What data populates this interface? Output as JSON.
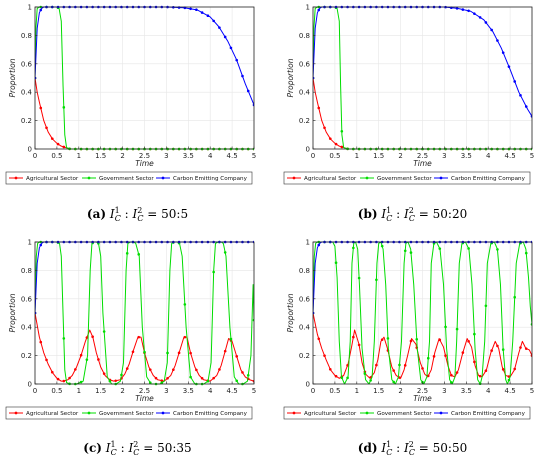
{
  "chart_data": [
    {
      "type": "line",
      "panel_letter": "(a)",
      "caption_ratio": "50:5",
      "xlabel": "Time",
      "ylabel": "Proportion",
      "xlim": [
        0,
        5
      ],
      "ylim": [
        0,
        1
      ],
      "xticks": [
        "0",
        "0.5",
        "1",
        "1.5",
        "2",
        "2.5",
        "3",
        "3.5",
        "4",
        "4.5",
        "5"
      ],
      "yticks": [
        "0",
        "0.2",
        "0.4",
        "0.6",
        "0.8",
        "1"
      ],
      "grid": true,
      "legend_position": "bottom",
      "series": [
        {
          "name": "Agricultural Sector",
          "color": "#ff0000",
          "x": [
            0,
            0.05,
            0.1,
            0.2,
            0.3,
            0.4,
            0.5,
            0.6,
            0.7,
            0.8,
            1.0,
            1.5,
            5
          ],
          "y": [
            0.5,
            0.4,
            0.33,
            0.2,
            0.12,
            0.07,
            0.04,
            0.02,
            0.01,
            0.0,
            0.0,
            0.0,
            0.0
          ]
        },
        {
          "name": "Government Sector",
          "color": "#00dd00",
          "x": [
            0,
            0.02,
            0.05,
            0.1,
            0.2,
            0.5,
            0.55,
            0.6,
            0.64,
            0.68,
            0.72,
            0.8,
            1.0,
            5
          ],
          "y": [
            0.5,
            0.85,
            0.99,
            1.0,
            1.0,
            1.0,
            0.99,
            0.9,
            0.45,
            0.1,
            0.01,
            0.0,
            0.0,
            0.0
          ]
        },
        {
          "name": "Carbon Emitting Company",
          "color": "#0000ff",
          "x": [
            0,
            0.05,
            0.1,
            0.15,
            0.2,
            0.3,
            0.5,
            1,
            2,
            3,
            3.4,
            3.7,
            4.0,
            4.2,
            4.4,
            4.6,
            4.8,
            5.0
          ],
          "y": [
            0.5,
            0.85,
            0.96,
            0.99,
            1.0,
            1.0,
            1.0,
            1.0,
            1.0,
            1.0,
            0.995,
            0.98,
            0.93,
            0.86,
            0.76,
            0.63,
            0.46,
            0.31
          ]
        }
      ]
    },
    {
      "type": "line",
      "panel_letter": "(b)",
      "caption_ratio": "50:20",
      "xlabel": "Time",
      "ylabel": "Proportion",
      "xlim": [
        0,
        5
      ],
      "ylim": [
        0,
        1
      ],
      "xticks": [
        "0",
        "0.5",
        "1",
        "1.5",
        "2",
        "2.5",
        "3",
        "3.5",
        "4",
        "4.5",
        "5"
      ],
      "yticks": [
        "0",
        "0.2",
        "0.4",
        "0.6",
        "0.8",
        "1"
      ],
      "grid": true,
      "legend_position": "bottom",
      "series": [
        {
          "name": "Agricultural Sector",
          "color": "#ff0000",
          "x": [
            0,
            0.05,
            0.1,
            0.2,
            0.3,
            0.4,
            0.5,
            0.6,
            0.7,
            0.8,
            1.0,
            5
          ],
          "y": [
            0.5,
            0.4,
            0.33,
            0.2,
            0.12,
            0.07,
            0.04,
            0.02,
            0.01,
            0.0,
            0.0,
            0.0
          ]
        },
        {
          "name": "Government Sector",
          "color": "#00dd00",
          "x": [
            0,
            0.02,
            0.05,
            0.1,
            0.2,
            0.5,
            0.55,
            0.6,
            0.63,
            0.66,
            0.7,
            0.8,
            1.0,
            5
          ],
          "y": [
            0.5,
            0.85,
            0.99,
            1.0,
            1.0,
            1.0,
            0.99,
            0.9,
            0.45,
            0.1,
            0.01,
            0.0,
            0.0,
            0.0
          ]
        },
        {
          "name": "Carbon Emitting Company",
          "color": "#0000ff",
          "x": [
            0,
            0.05,
            0.1,
            0.15,
            0.2,
            0.3,
            0.5,
            1,
            2,
            3,
            3.3,
            3.6,
            3.9,
            4.1,
            4.3,
            4.5,
            4.7,
            4.9,
            5.0
          ],
          "y": [
            0.5,
            0.85,
            0.96,
            0.99,
            1.0,
            1.0,
            1.0,
            1.0,
            1.0,
            1.0,
            0.99,
            0.97,
            0.91,
            0.83,
            0.71,
            0.56,
            0.4,
            0.28,
            0.23
          ]
        }
      ]
    },
    {
      "type": "line",
      "panel_letter": "(c)",
      "caption_ratio": "50:35",
      "xlabel": "Time",
      "ylabel": "Proportion",
      "xlim": [
        0,
        5
      ],
      "ylim": [
        0,
        1
      ],
      "xticks": [
        "0",
        "0.5",
        "1",
        "1.5",
        "2",
        "2.5",
        "3",
        "3.5",
        "4",
        "4.5",
        "5"
      ],
      "yticks": [
        "0",
        "0.2",
        "0.4",
        "0.6",
        "0.8",
        "1"
      ],
      "grid": true,
      "legend_position": "bottom",
      "series": [
        {
          "name": "Agricultural Sector",
          "color": "#ff0000",
          "x": [
            0,
            0.1,
            0.2,
            0.3,
            0.4,
            0.5,
            0.6,
            0.65,
            0.75,
            0.85,
            0.95,
            1.05,
            1.15,
            1.25,
            1.32,
            1.4,
            1.5,
            1.6,
            1.7,
            1.8,
            1.95,
            2.05,
            2.15,
            2.25,
            2.35,
            2.42,
            2.5,
            2.6,
            2.7,
            2.8,
            2.95,
            3.1,
            3.2,
            3.3,
            3.4,
            3.47,
            3.55,
            3.65,
            3.75,
            3.85,
            4.0,
            4.15,
            4.25,
            4.35,
            4.42,
            4.5,
            4.6,
            4.7,
            4.8,
            4.9,
            5.0
          ],
          "y": [
            0.5,
            0.33,
            0.22,
            0.14,
            0.08,
            0.04,
            0.02,
            0.02,
            0.03,
            0.06,
            0.12,
            0.2,
            0.3,
            0.38,
            0.33,
            0.22,
            0.12,
            0.06,
            0.03,
            0.02,
            0.03,
            0.07,
            0.14,
            0.24,
            0.33,
            0.33,
            0.22,
            0.12,
            0.06,
            0.03,
            0.02,
            0.06,
            0.13,
            0.23,
            0.33,
            0.33,
            0.22,
            0.12,
            0.06,
            0.03,
            0.02,
            0.06,
            0.13,
            0.24,
            0.32,
            0.3,
            0.2,
            0.1,
            0.05,
            0.03,
            0.02
          ]
        },
        {
          "name": "Government Sector",
          "color": "#00dd00",
          "x": [
            0,
            0.03,
            0.06,
            0.1,
            0.5,
            0.56,
            0.6,
            0.64,
            0.68,
            0.72,
            0.8,
            0.95,
            1.1,
            1.2,
            1.26,
            1.3,
            1.35,
            1.4,
            1.45,
            1.5,
            1.55,
            1.65,
            1.75,
            1.85,
            1.95,
            2.02,
            2.08,
            2.12,
            2.18,
            2.25,
            2.3,
            2.38,
            2.45,
            2.55,
            2.65,
            2.75,
            2.85,
            2.95,
            3.02,
            3.08,
            3.12,
            3.18,
            3.25,
            3.3,
            3.36,
            3.45,
            3.55,
            3.65,
            3.75,
            3.85,
            3.95,
            4.02,
            4.08,
            4.12,
            4.18,
            4.25,
            4.3,
            4.36,
            4.45,
            4.55,
            4.65,
            4.75,
            4.85,
            4.93,
            4.98,
            5.0
          ],
          "y": [
            0.5,
            0.9,
            0.99,
            1.0,
            1.0,
            0.99,
            0.9,
            0.5,
            0.1,
            0.01,
            0.0,
            0.0,
            0.02,
            0.2,
            0.8,
            0.99,
            1.0,
            1.0,
            0.99,
            0.9,
            0.5,
            0.05,
            0.0,
            0.0,
            0.02,
            0.15,
            0.8,
            0.99,
            1.0,
            1.0,
            0.99,
            0.9,
            0.4,
            0.05,
            0.0,
            0.0,
            0.0,
            0.02,
            0.15,
            0.8,
            0.99,
            1.0,
            1.0,
            0.99,
            0.9,
            0.4,
            0.05,
            0.0,
            0.0,
            0.0,
            0.02,
            0.15,
            0.8,
            0.99,
            1.0,
            1.0,
            0.99,
            0.9,
            0.4,
            0.05,
            0.0,
            0.0,
            0.02,
            0.2,
            0.7,
            0.45
          ]
        },
        {
          "name": "Carbon Emitting Company",
          "color": "#0000ff",
          "x": [
            0,
            0.05,
            0.1,
            0.15,
            0.2,
            0.3,
            0.5,
            5
          ],
          "y": [
            0.5,
            0.85,
            0.96,
            0.99,
            1.0,
            1.0,
            1.0,
            1.0
          ]
        }
      ]
    },
    {
      "type": "line",
      "panel_letter": "(d)",
      "caption_ratio": "50:50",
      "xlabel": "Time",
      "ylabel": "Proportion",
      "xlim": [
        0,
        5
      ],
      "ylim": [
        0,
        1
      ],
      "xticks": [
        "0",
        "0.5",
        "1",
        "1.5",
        "2",
        "2.5",
        "3",
        "3.5",
        "4",
        "4.5",
        "5"
      ],
      "yticks": [
        "0",
        "0.2",
        "0.4",
        "0.6",
        "0.8",
        "1"
      ],
      "grid": true,
      "legend_position": "bottom",
      "series": [
        {
          "name": "Agricultural Sector",
          "color": "#ff0000",
          "x": [
            0,
            0.1,
            0.2,
            0.3,
            0.4,
            0.5,
            0.6,
            0.7,
            0.8,
            0.88,
            0.95,
            1.05,
            1.12,
            1.2,
            1.3,
            1.4,
            1.48,
            1.55,
            1.62,
            1.7,
            1.8,
            1.9,
            2.0,
            2.08,
            2.16,
            2.25,
            2.35,
            2.45,
            2.55,
            2.62,
            2.7,
            2.78,
            2.88,
            2.98,
            3.08,
            3.16,
            3.24,
            3.32,
            3.42,
            3.52,
            3.62,
            3.7,
            3.78,
            3.86,
            3.96,
            4.06,
            4.16,
            4.24,
            4.32,
            4.4,
            4.5,
            4.6,
            4.7,
            4.78,
            4.86,
            4.94,
            5.0
          ],
          "y": [
            0.5,
            0.35,
            0.25,
            0.17,
            0.1,
            0.06,
            0.04,
            0.06,
            0.14,
            0.26,
            0.38,
            0.28,
            0.15,
            0.07,
            0.04,
            0.08,
            0.17,
            0.3,
            0.33,
            0.25,
            0.12,
            0.06,
            0.04,
            0.1,
            0.2,
            0.32,
            0.28,
            0.15,
            0.07,
            0.05,
            0.1,
            0.22,
            0.32,
            0.26,
            0.13,
            0.06,
            0.05,
            0.1,
            0.22,
            0.32,
            0.26,
            0.13,
            0.06,
            0.05,
            0.1,
            0.22,
            0.3,
            0.25,
            0.12,
            0.06,
            0.05,
            0.1,
            0.22,
            0.3,
            0.25,
            0.24,
            0.2
          ]
        },
        {
          "name": "Government Sector",
          "color": "#00dd00",
          "x": [
            0,
            0.03,
            0.06,
            0.1,
            0.45,
            0.5,
            0.55,
            0.6,
            0.65,
            0.72,
            0.8,
            0.85,
            0.89,
            0.93,
            0.97,
            1.02,
            1.06,
            1.12,
            1.2,
            1.28,
            1.35,
            1.4,
            1.46,
            1.5,
            1.55,
            1.6,
            1.66,
            1.72,
            1.8,
            1.88,
            1.95,
            2.02,
            2.08,
            2.12,
            2.17,
            2.23,
            2.3,
            2.38,
            2.46,
            2.53,
            2.6,
            2.66,
            2.7,
            2.76,
            2.82,
            2.9,
            2.98,
            3.05,
            3.12,
            3.18,
            3.24,
            3.28,
            3.34,
            3.4,
            3.48,
            3.56,
            3.63,
            3.7,
            3.76,
            3.82,
            3.86,
            3.92,
            3.98,
            4.06,
            4.14,
            4.21,
            4.28,
            4.34,
            4.4,
            4.44,
            4.5,
            4.56,
            4.64,
            4.72,
            4.8,
            4.86,
            4.92,
            4.96,
            5.0
          ],
          "y": [
            0.5,
            0.9,
            0.99,
            1.0,
            1.0,
            0.97,
            0.75,
            0.3,
            0.05,
            0.0,
            0.05,
            0.3,
            0.85,
            0.99,
            1.0,
            0.95,
            0.7,
            0.25,
            0.03,
            0.0,
            0.05,
            0.3,
            0.85,
            0.99,
            1.0,
            0.95,
            0.7,
            0.25,
            0.03,
            0.0,
            0.05,
            0.3,
            0.85,
            0.99,
            1.0,
            0.95,
            0.7,
            0.25,
            0.03,
            0.0,
            0.05,
            0.3,
            0.85,
            0.99,
            1.0,
            0.95,
            0.7,
            0.25,
            0.03,
            0.0,
            0.05,
            0.3,
            0.85,
            0.99,
            1.0,
            0.95,
            0.7,
            0.25,
            0.03,
            0.0,
            0.05,
            0.3,
            0.85,
            0.99,
            1.0,
            0.95,
            0.7,
            0.25,
            0.03,
            0.0,
            0.05,
            0.3,
            0.85,
            0.99,
            1.0,
            0.95,
            0.75,
            0.55,
            0.42
          ]
        },
        {
          "name": "Carbon Emitting Company",
          "color": "#0000ff",
          "x": [
            0,
            0.05,
            0.1,
            0.15,
            0.2,
            0.3,
            0.5,
            5
          ],
          "y": [
            0.5,
            0.85,
            0.96,
            0.99,
            1.0,
            1.0,
            1.0,
            1.0
          ]
        }
      ]
    }
  ]
}
